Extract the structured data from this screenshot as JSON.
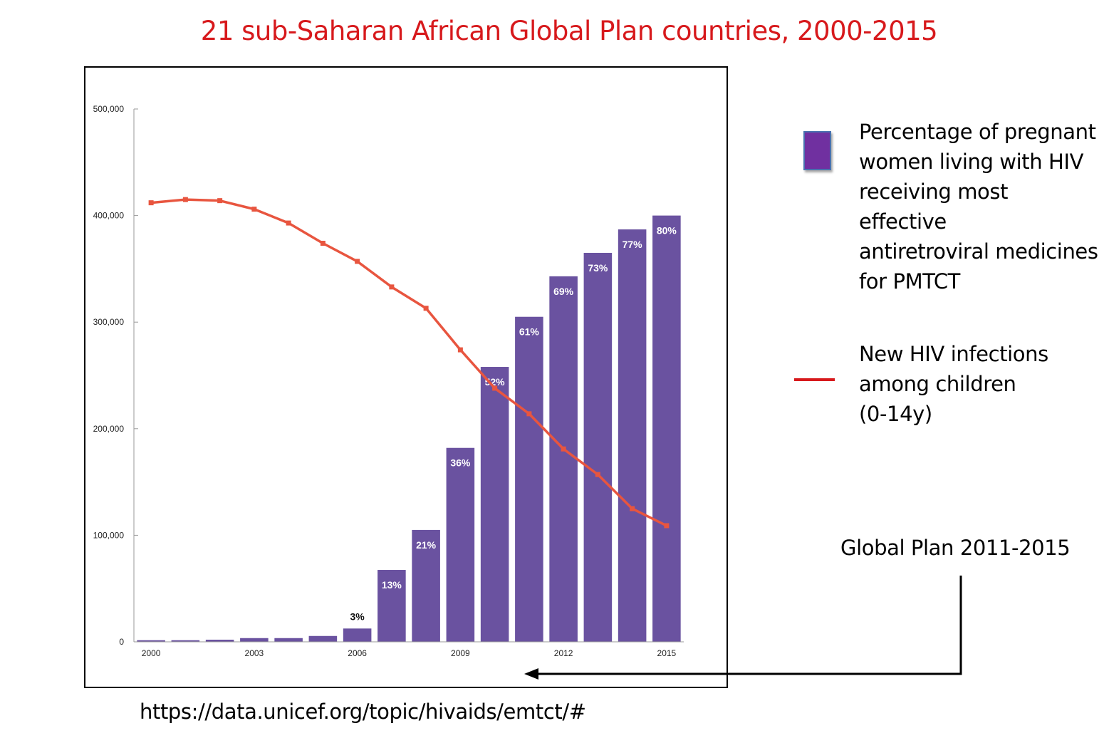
{
  "title": "21 sub-Saharan African Global Plan countries, 2000-2015",
  "colors": {
    "bar": "#6a52a0",
    "line": "#e8553f",
    "title": "#d7191c",
    "legend_swatch": "#7030a0",
    "legend_line": "#d7191c"
  },
  "legend": {
    "bars_label": "Percentage of pregnant\nwomen living with HIV\nreceiving most effective\nantiretroviral medicines\nfor PMTCT",
    "line_label": "New HIV infections\namong children\n(0-14y)"
  },
  "annotation": {
    "global_plan": "Global Plan 2011-2015"
  },
  "source": "https://data.unicef.org/topic/hivaids/emtct/#",
  "chart_data": {
    "type": "bar",
    "x": [
      2000,
      2001,
      2002,
      2003,
      2004,
      2005,
      2006,
      2007,
      2008,
      2009,
      2010,
      2011,
      2012,
      2013,
      2014,
      2015
    ],
    "ylim": [
      0,
      500000
    ],
    "yticks": [
      0,
      100000,
      200000,
      300000,
      400000,
      500000
    ],
    "ytick_labels": [
      "0",
      "100,000",
      "200,000",
      "300,000",
      "400,000",
      "500,000"
    ],
    "xtick_labels": {
      "2000": "2000",
      "2003": "2003",
      "2006": "2006",
      "2009": "2009",
      "2012": "2012",
      "2015": "2015"
    },
    "series": [
      {
        "kind": "bar",
        "values": [
          1500,
          1500,
          2000,
          3500,
          3500,
          5500,
          12500,
          67500,
          105000,
          182000,
          258000,
          305000,
          343000,
          365000,
          387000,
          400000
        ],
        "labels": [
          "",
          "",
          "",
          "",
          "",
          "",
          "3%",
          "13%",
          "21%",
          "36%",
          "52%",
          "61%",
          "69%",
          "73%",
          "77%",
          "80%"
        ]
      },
      {
        "kind": "line",
        "values": [
          412000,
          415000,
          414000,
          406000,
          393000,
          374000,
          357000,
          333000,
          313000,
          274000,
          238000,
          214000,
          181000,
          157000,
          125000,
          109000
        ]
      }
    ]
  }
}
